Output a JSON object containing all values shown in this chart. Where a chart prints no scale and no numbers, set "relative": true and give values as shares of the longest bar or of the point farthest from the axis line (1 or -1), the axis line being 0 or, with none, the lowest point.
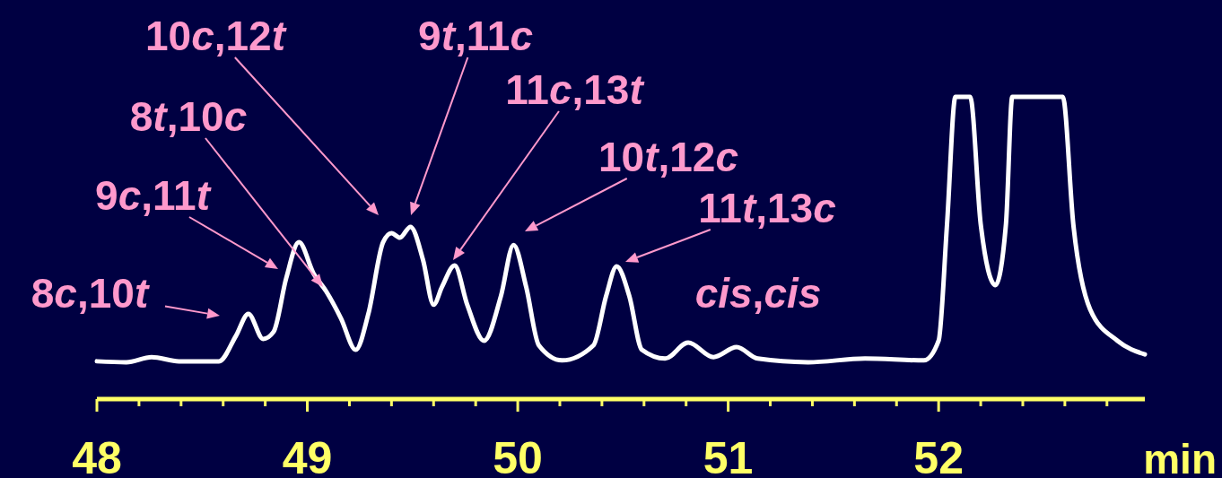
{
  "chart_data": {
    "type": "line",
    "relative": true,
    "xlabel": "min",
    "xlim": [
      48,
      52.98
    ],
    "xticks": [
      48,
      {
        "value": 48.2,
        "label": null
      },
      {
        "value": 48.4,
        "label": null
      },
      {
        "value": 48.6,
        "label": null
      },
      {
        "value": 48.8,
        "label": null
      },
      49,
      {
        "value": 49.2,
        "label": null
      },
      {
        "value": 49.4,
        "label": null
      },
      {
        "value": 49.6,
        "label": null
      },
      {
        "value": 49.8,
        "label": null
      },
      50,
      {
        "value": 50.2,
        "label": null
      },
      {
        "value": 50.4,
        "label": null
      },
      {
        "value": 50.6,
        "label": null
      },
      {
        "value": 50.8,
        "label": null
      },
      51,
      {
        "value": 51.2,
        "label": null
      },
      {
        "value": 51.4,
        "label": null
      },
      {
        "value": 51.6,
        "label": null
      },
      {
        "value": 51.8,
        "label": null
      },
      52,
      {
        "value": 52.2,
        "label": null
      },
      {
        "value": 52.4,
        "label": null
      },
      {
        "value": 52.6,
        "label": null
      },
      {
        "value": 52.8,
        "label": null
      }
    ],
    "x": [
      48.0,
      48.14,
      48.26,
      48.39,
      48.58,
      48.66,
      48.72,
      48.79,
      48.84,
      48.9,
      48.96,
      49.03,
      49.09,
      49.16,
      49.23,
      49.29,
      49.36,
      49.4,
      49.44,
      49.49,
      49.55,
      49.6,
      49.64,
      49.7,
      49.76,
      49.84,
      49.92,
      49.98,
      50.04,
      50.1,
      50.21,
      50.36,
      50.42,
      50.47,
      50.53,
      50.59,
      50.7,
      50.81,
      50.93,
      51.04,
      51.14,
      51.38,
      51.65,
      51.93,
      52.0,
      52.04,
      52.08,
      52.15,
      52.2,
      52.27,
      52.32,
      52.35,
      52.59,
      52.64,
      52.72,
      52.85,
      52.98
    ],
    "series": [
      {
        "color": "#ffffff",
        "values": [
          0.125,
          0.122,
          0.139,
          0.125,
          0.125,
          0.208,
          0.282,
          0.199,
          0.223,
          0.401,
          0.519,
          0.415,
          0.356,
          0.267,
          0.163,
          0.282,
          0.519,
          0.549,
          0.534,
          0.57,
          0.46,
          0.312,
          0.371,
          0.442,
          0.312,
          0.193,
          0.341,
          0.51,
          0.371,
          0.178,
          0.128,
          0.178,
          0.341,
          0.439,
          0.341,
          0.163,
          0.134,
          0.187,
          0.139,
          0.172,
          0.134,
          0.122,
          0.134,
          0.128,
          0.193,
          0.579,
          1,
          1,
          0.579,
          0.377,
          0.579,
          1,
          1,
          0.579,
          0.297,
          0.193,
          0.148
        ]
      }
    ],
    "annotations": [
      "8c,10t",
      "9c,11t",
      "8t,10c",
      "10c,12t",
      "9t,11c",
      "11c,13t",
      "10t,12c",
      "11t,13c",
      "cis,cis"
    ]
  }
}
